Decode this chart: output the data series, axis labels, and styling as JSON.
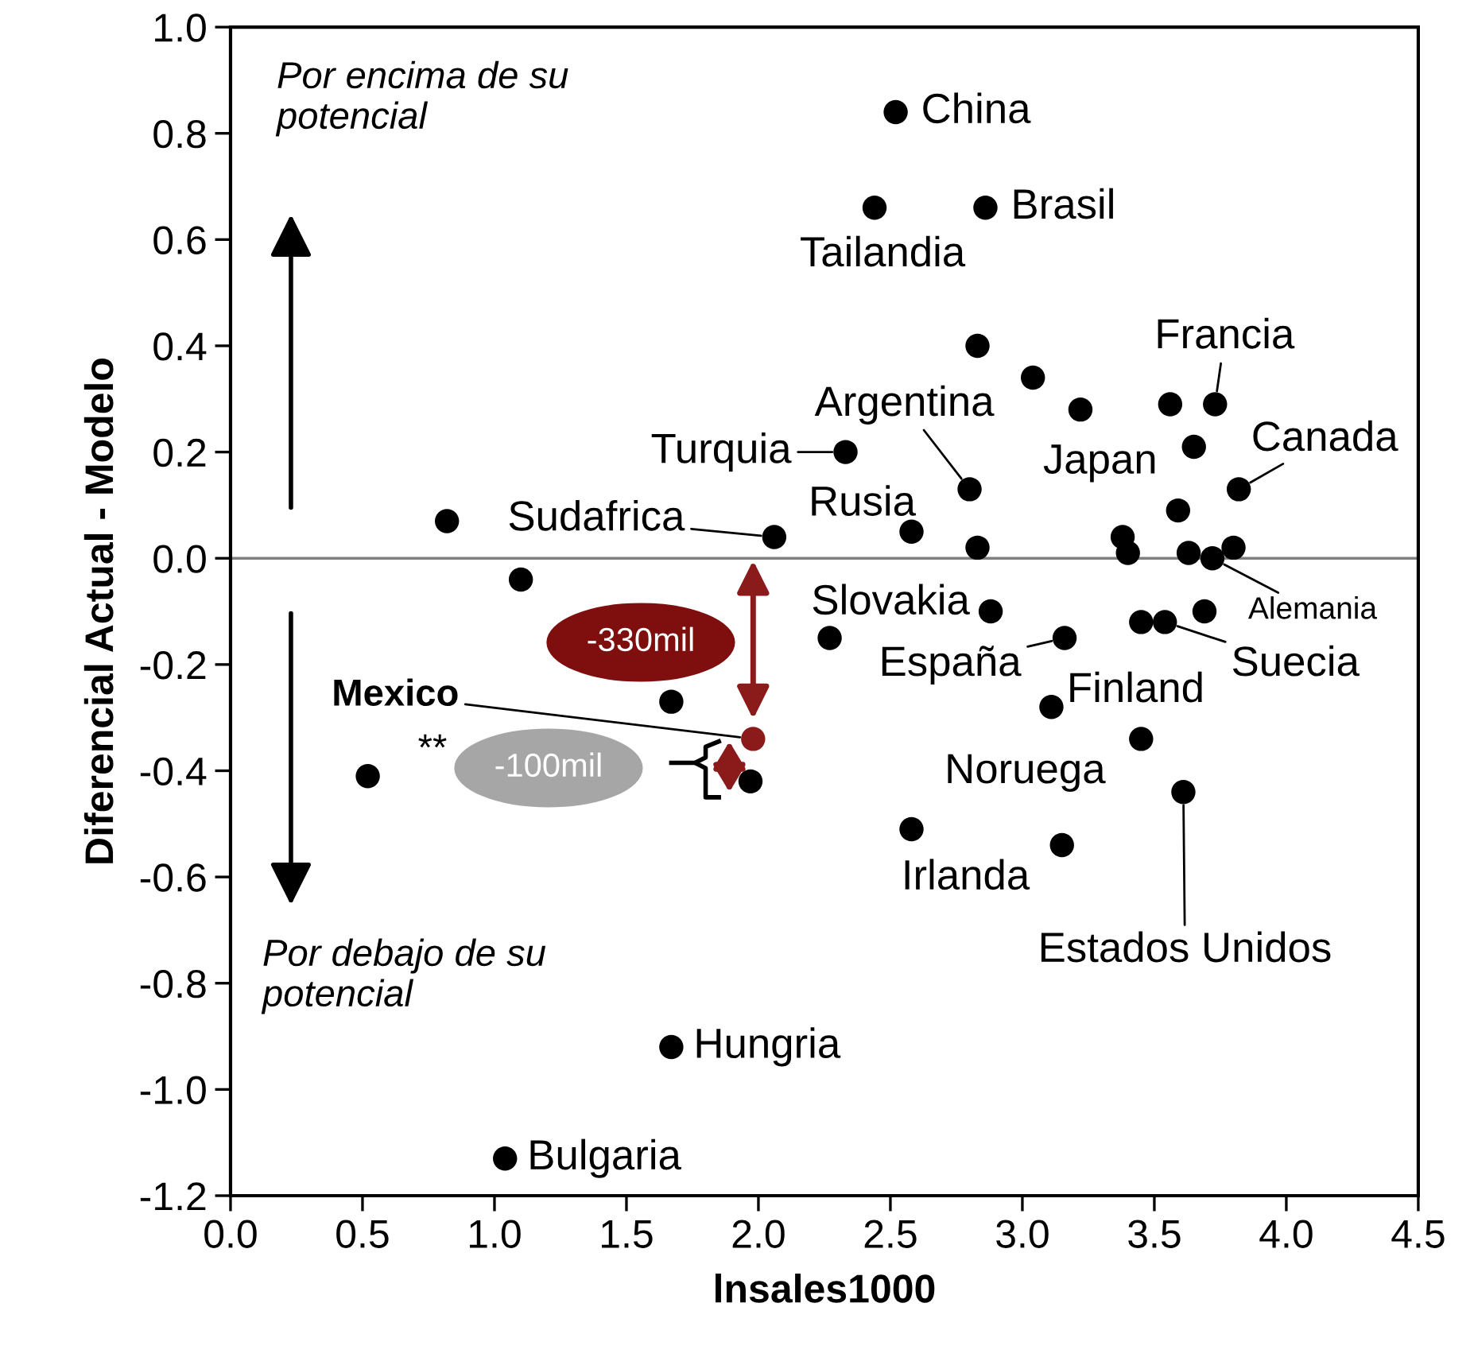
{
  "chart_data": {
    "type": "scatter",
    "xlabel": "lnsales1000",
    "ylabel": "Diferencial Actual - Modelo",
    "xlim": [
      0.0,
      4.5
    ],
    "ylim": [
      -1.2,
      1.0
    ],
    "xticks": [
      {
        "value": 0,
        "label": "0.0"
      },
      0.5,
      {
        "value": 1,
        "label": "1.0"
      },
      1.5,
      {
        "value": 2,
        "label": "2.0"
      },
      2.5,
      {
        "value": 3,
        "label": "3.0"
      },
      3.5,
      {
        "value": 4,
        "label": "4.0"
      },
      4.5
    ],
    "yticks": [
      -1.2,
      {
        "value": -1,
        "label": "-1.0"
      },
      -0.8,
      -0.6,
      -0.4,
      -0.2,
      {
        "value": 0,
        "label": "0.0"
      },
      0.2,
      0.4,
      0.6,
      0.8,
      {
        "value": 1,
        "label": "1.0"
      }
    ],
    "grid": false,
    "marker": "circle",
    "legend": false,
    "series": [
      {
        "color": "#000000",
        "x": [
          2.52,
          2.44,
          2.86,
          2.83,
          3.04,
          3.22,
          3.56,
          3.73,
          3.65,
          3.82,
          3.59,
          2.8,
          2.33,
          2.58,
          2.06,
          2.83,
          3.38,
          3.4,
          3.63,
          3.72,
          3.8,
          0.82,
          1.1,
          2.88,
          2.27,
          3.16,
          3.45,
          3.54,
          3.69,
          3.11,
          3.45,
          3.61,
          2.58,
          3.15,
          1.67,
          1.97,
          0.52,
          1.67,
          1.04
        ],
        "values": [
          0.84,
          0.66,
          0.66,
          0.4,
          0.34,
          0.28,
          0.29,
          0.29,
          0.21,
          0.13,
          0.09,
          0.13,
          0.2,
          0.05,
          0.04,
          0.02,
          0.04,
          0.01,
          0.01,
          0.0,
          0.02,
          0.07,
          -0.04,
          -0.1,
          -0.15,
          -0.15,
          -0.12,
          -0.12,
          -0.1,
          -0.28,
          -0.34,
          -0.44,
          -0.51,
          -0.54,
          -0.27,
          -0.42,
          -0.41,
          -0.92,
          -1.13
        ]
      },
      {
        "color": "#8b1a1a",
        "x": [
          1.98
        ],
        "values": [
          -0.34
        ]
      }
    ],
    "ref_lines": [
      {
        "axis": "y",
        "value": 0.0,
        "color": "#808080"
      }
    ],
    "annotations": [
      "Por encima de su\npotencial",
      "Por debajo de su\npotencial",
      "-330mil",
      "-100mil",
      "**",
      {
        "text": "China",
        "x": 2.52,
        "y": 0.84
      },
      {
        "text": "Brasil",
        "x": 2.86,
        "y": 0.66
      },
      {
        "text": "Tailandia",
        "x": 2.44,
        "y": 0.66
      },
      {
        "text": "Francia",
        "x": 3.73,
        "y": 0.29
      },
      {
        "text": "Argentina",
        "x": 2.8,
        "y": 0.13
      },
      {
        "text": "Turquia",
        "x": 2.33,
        "y": 0.2
      },
      {
        "text": "Canada",
        "x": 3.82,
        "y": 0.13
      },
      {
        "text": "Japan",
        "x": 3.65,
        "y": 0.21
      },
      {
        "text": "Sudafrica",
        "x": 2.06,
        "y": 0.04
      },
      {
        "text": "Rusia",
        "x": 2.58,
        "y": 0.05
      },
      {
        "text": "Slovakia",
        "x": 2.88,
        "y": -0.1
      },
      {
        "text": "Alemania",
        "x": 3.72,
        "y": 0.0
      },
      {
        "text": "España",
        "x": 3.16,
        "y": -0.15
      },
      {
        "text": "Suecia",
        "x": 3.54,
        "y": -0.12
      },
      {
        "text": "Finland",
        "x": 3.11,
        "y": -0.28
      },
      {
        "text": "Noruega",
        "x": 3.45,
        "y": -0.34
      },
      {
        "text": "Irlanda",
        "x": 2.58,
        "y": -0.51
      },
      {
        "text": "Estados Unidos",
        "x": 3.61,
        "y": -0.44
      },
      {
        "text": "Hungria",
        "x": 1.67,
        "y": -0.92
      },
      {
        "text": "Bulgaria",
        "x": 1.04,
        "y": -1.13
      },
      {
        "text": "Mexico",
        "x": 1.98,
        "y": -0.34
      }
    ]
  }
}
